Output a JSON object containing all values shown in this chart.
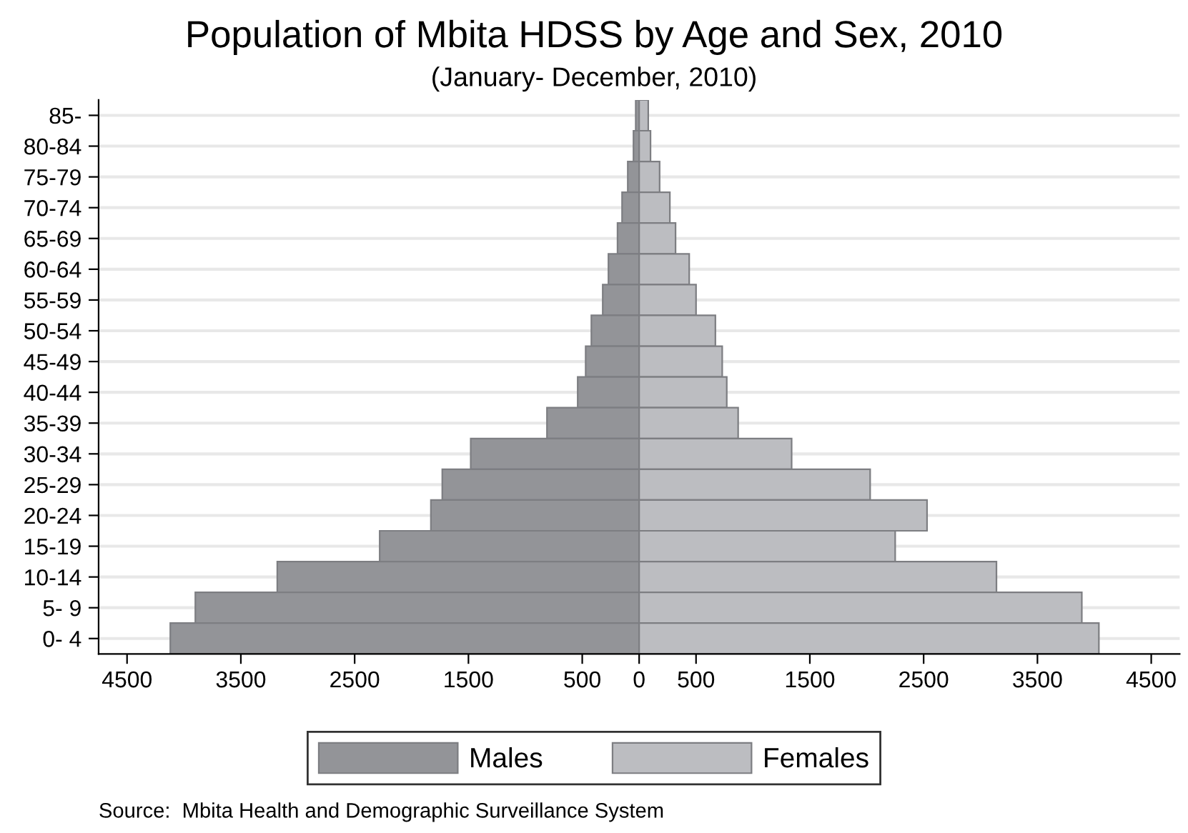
{
  "chart_data": {
    "type": "bar",
    "orientation": "horizontal",
    "title": "Population of Mbita HDSS by Age and Sex, 2010",
    "subtitle": "(January- December, 2010)",
    "categories": [
      "85-",
      "80-84",
      "75-79",
      "70-74",
      "65-69",
      "60-64",
      "55-59",
      "50-54",
      "45-49",
      "40-44",
      "35-39",
      "30-34",
      "25-29",
      "20-24",
      "15-19",
      "10-14",
      "5- 9",
      "0- 4"
    ],
    "series": [
      {
        "name": "Males",
        "color": "#939498",
        "values": [
          -30,
          -50,
          -100,
          -150,
          -190,
          -270,
          -320,
          -420,
          -470,
          -540,
          -810,
          -1480,
          -1730,
          -1830,
          -2280,
          -3180,
          -3900,
          -4120
        ]
      },
      {
        "name": "Females",
        "color": "#bcbdc1",
        "values": [
          80,
          100,
          180,
          270,
          320,
          440,
          500,
          670,
          730,
          770,
          870,
          1340,
          2030,
          2530,
          2250,
          3140,
          3890,
          4040
        ]
      }
    ],
    "xlim": [
      -4750,
      4750
    ],
    "xticks": [
      {
        "value": -4500,
        "label": "4500"
      },
      {
        "value": -3500,
        "label": "3500"
      },
      {
        "value": -2500,
        "label": "2500"
      },
      {
        "value": -1500,
        "label": "1500"
      },
      {
        "value": -500,
        "label": "500"
      },
      0,
      500,
      1500,
      2500,
      3500,
      4500
    ],
    "stacked": true,
    "grid": "y",
    "legend": "bottom",
    "annotations": [
      "Source:  Mbita Health and Demographic Surveillance System"
    ]
  }
}
